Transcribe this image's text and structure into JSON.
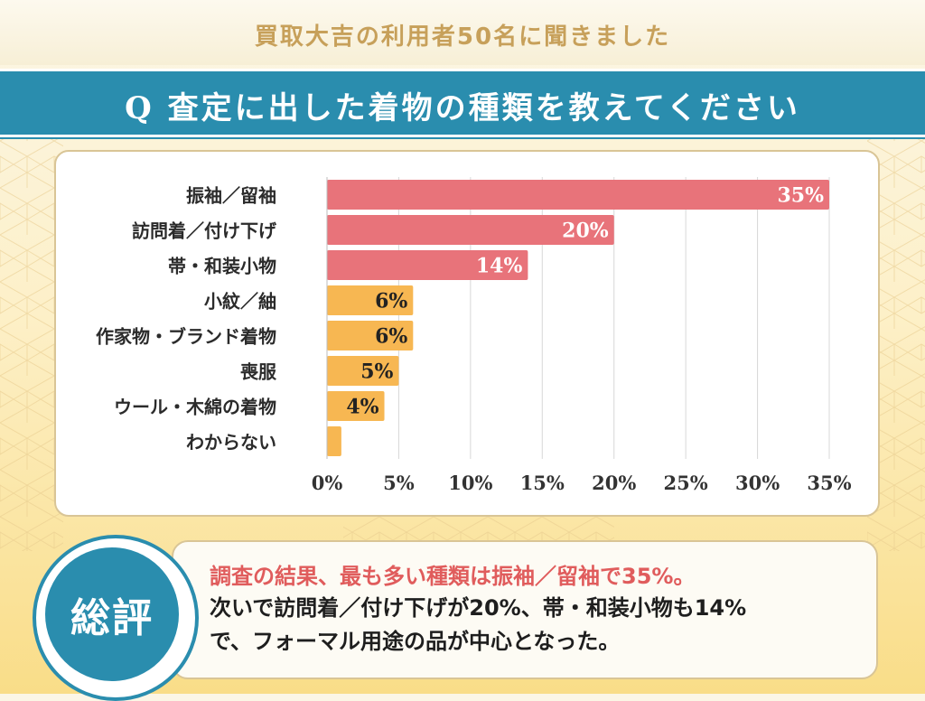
{
  "header": {
    "survey_title": "買取大吉の利用者50名に聞きました",
    "question": "Q 査定に出した着物の種類を教えてください"
  },
  "colors": {
    "accent_blue": "#2a8dae",
    "bar_red": "#e8737a",
    "bar_orange": "#f7b752",
    "gold": "#c7a05a"
  },
  "chart_data": {
    "type": "bar",
    "orientation": "horizontal",
    "title": "Q 査定に出した着物の種類を教えてください",
    "categories": [
      "振袖／留袖",
      "訪問着／付け下げ",
      "帯・和装小物",
      "小紋／紬",
      "作家物・ブランド着物",
      "喪服",
      "ウール・木綿の着物",
      "わからない"
    ],
    "values": [
      35,
      20,
      14,
      6,
      6,
      5,
      4,
      1
    ],
    "labels": [
      "35%",
      "20%",
      "14%",
      "6%",
      "6%",
      "5%",
      "4%",
      ""
    ],
    "bar_colors": [
      "red",
      "red",
      "red",
      "orange",
      "orange",
      "orange",
      "orange",
      "orange"
    ],
    "xlim": [
      0,
      35
    ],
    "xticks": [
      "0%",
      "5%",
      "10%",
      "15%",
      "20%",
      "25%",
      "30%",
      "35%"
    ],
    "xtick_values": [
      0,
      5,
      10,
      15,
      20,
      25,
      30,
      35
    ],
    "grid": true
  },
  "summary": {
    "badge": "総評",
    "line1": "調査の結果、最も多い種類は振袖／留袖で35%。",
    "line2": "次いで訪問着／付け下げが20%、帯・和装小物も14%",
    "line3": "で、フォーマル用途の品が中心となった。"
  }
}
